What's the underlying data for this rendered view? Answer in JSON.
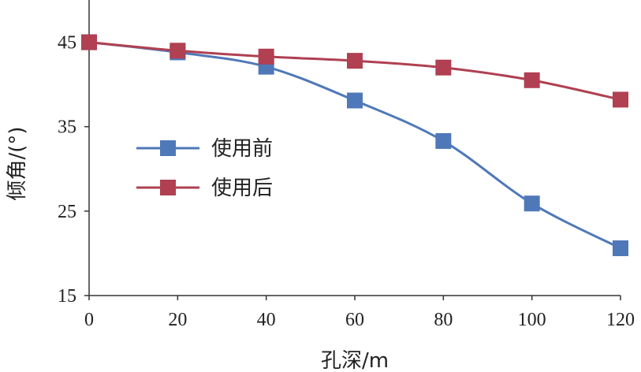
{
  "chart_data": {
    "type": "line",
    "xlabel": "孔深/m",
    "ylabel": "倾角/(°)",
    "xlim": [
      0,
      120
    ],
    "ylim": [
      15,
      50
    ],
    "xticks": [
      0,
      20,
      40,
      60,
      80,
      100,
      120
    ],
    "yticks": [
      15,
      25,
      35,
      45
    ],
    "x": [
      0,
      20,
      40,
      60,
      80,
      100,
      120
    ],
    "grid": false,
    "legend_position": "center-left",
    "series": [
      {
        "name": "使用前",
        "color": "#4F78B8",
        "values": [
          45.0,
          43.8,
          42.1,
          38.1,
          33.3,
          25.9,
          20.6
        ]
      },
      {
        "name": "使用后",
        "color": "#B04052",
        "values": [
          45.0,
          44.0,
          43.3,
          42.8,
          42.0,
          40.5,
          38.2
        ]
      }
    ]
  }
}
